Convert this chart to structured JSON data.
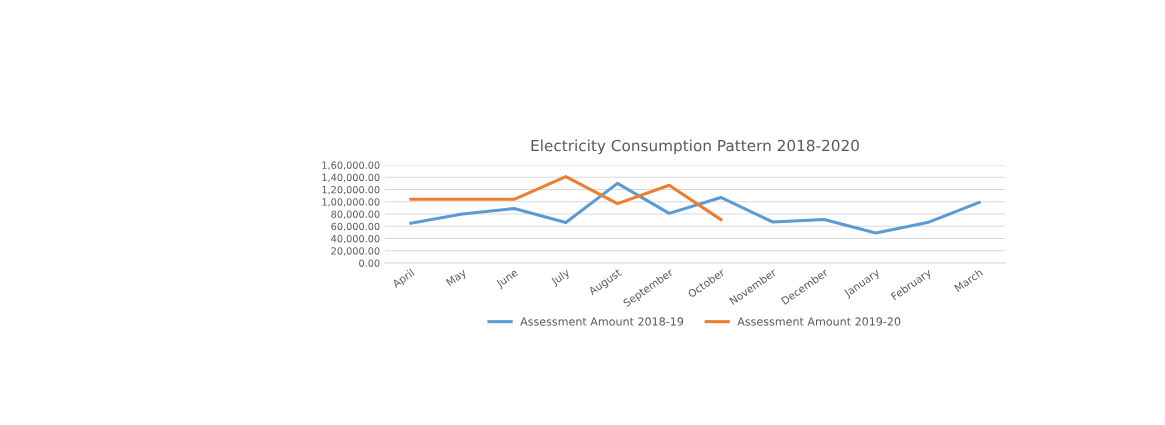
{
  "chart_data": {
    "type": "line",
    "title": "Electricity Consumption Pattern 2018-2020",
    "categories": [
      "April",
      "May",
      "June",
      "July",
      "August",
      "September",
      "October",
      "November",
      "December",
      "January",
      "February",
      "March"
    ],
    "series": [
      {
        "name": "Assessment Amount 2018-19",
        "color": "#5b9bd5",
        "values": [
          65000,
          80000,
          89000,
          66000,
          130000,
          81000,
          107000,
          67000,
          71000,
          49000,
          66000,
          99000
        ]
      },
      {
        "name": "Assessment Amount 2019-20",
        "color": "#ed7d31",
        "values": [
          104000,
          104000,
          104000,
          141000,
          97000,
          127000,
          71000,
          null,
          null,
          null,
          null,
          null
        ]
      }
    ],
    "ylim": [
      0,
      160000
    ],
    "yticks": [
      {
        "value": 0,
        "label": "0.00"
      },
      {
        "value": 20000,
        "label": "20,000.00"
      },
      {
        "value": 40000,
        "label": "40,000.00"
      },
      {
        "value": 60000,
        "label": "60,000.00"
      },
      {
        "value": 80000,
        "label": "80,000.00"
      },
      {
        "value": 100000,
        "label": "1,00,000.00"
      },
      {
        "value": 120000,
        "label": "1,20,000.00"
      },
      {
        "value": 140000,
        "label": "1,40,000.00"
      },
      {
        "value": 160000,
        "label": "1,60,000.00"
      }
    ],
    "grid": "y",
    "legend": "bottom",
    "marker": "none",
    "line_style": "solid"
  }
}
